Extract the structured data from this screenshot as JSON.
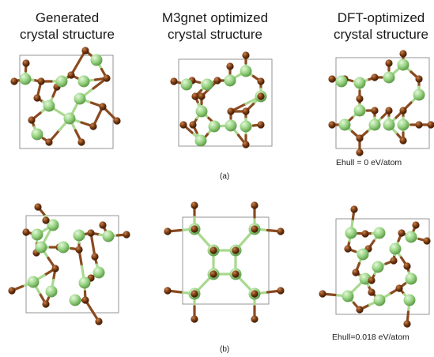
{
  "columns": [
    {
      "line1": "Generated",
      "line2": "crystal structure"
    },
    {
      "line1": "M3gnet optimized",
      "line2": "crystal structure"
    },
    {
      "line1": "DFT-optimized",
      "line2": "crystal structure"
    }
  ],
  "rows": [
    {
      "caption": "(a)",
      "ehull": "Ehull = 0 eV/atom"
    },
    {
      "caption": "(b)",
      "ehull": "Ehull=0.018 eV/atom"
    }
  ],
  "colors": {
    "green_atom": "#8fd07a",
    "brown_atom": "#7a3a0f",
    "bond_green": "#a9d98f",
    "bond_brown": "#8a4a20",
    "cell_border": "#8a8a8a"
  }
}
